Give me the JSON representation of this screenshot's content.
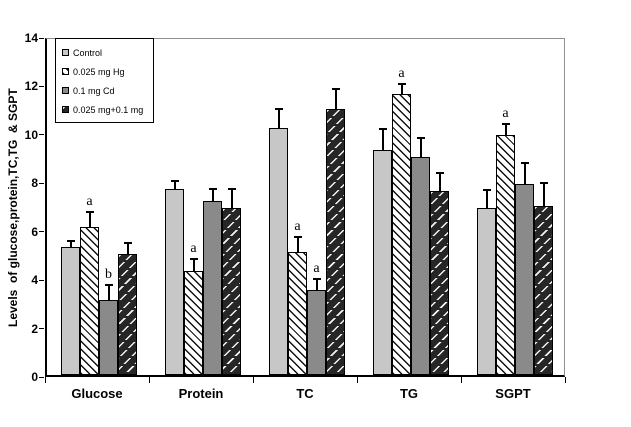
{
  "chart_data": {
    "type": "bar",
    "title": "",
    "xlabel": "",
    "ylabel": "Levels  of glucose,protein,TC,TG  & SGPT",
    "ylim": [
      0,
      14
    ],
    "ytick_step": 2,
    "yticks": [
      "0",
      "2",
      "4",
      "6",
      "8",
      "10",
      "12",
      "14"
    ],
    "grid": false,
    "legend_position": "top-left-inside",
    "error_bars": "plus-direction",
    "categories": [
      "Glucose",
      "Protein",
      "TC",
      "TG",
      "SGPT"
    ],
    "series": [
      {
        "name": "Control",
        "pattern": "solid-light-gray",
        "values": [
          5.3,
          7.7,
          10.2,
          9.3,
          6.9
        ],
        "errors": [
          0.25,
          0.3,
          0.8,
          0.85,
          0.75
        ],
        "annotations": [
          "",
          "",
          "",
          "",
          ""
        ]
      },
      {
        "name": "0.025 mg Hg",
        "pattern": "white-diagonal-hatch",
        "values": [
          6.1,
          4.3,
          5.1,
          11.6,
          9.9
        ],
        "errors": [
          0.65,
          0.5,
          0.6,
          0.4,
          0.45
        ],
        "annotations": [
          "a",
          "a",
          "a",
          "a",
          "a"
        ]
      },
      {
        "name": "0.1 mg Cd",
        "pattern": "solid-dark-gray",
        "values": [
          3.1,
          7.2,
          3.5,
          9.0,
          7.9
        ],
        "errors": [
          0.6,
          0.5,
          0.45,
          0.8,
          0.85
        ],
        "annotations": [
          "b",
          "",
          "a",
          "",
          ""
        ]
      },
      {
        "name": "0.025 mg+0.1 mg",
        "pattern": "dark-diagonal-dash",
        "values": [
          5.0,
          6.9,
          11.0,
          7.6,
          7.0
        ],
        "errors": [
          0.45,
          0.8,
          0.8,
          0.75,
          0.95
        ],
        "annotations": [
          "",
          "",
          "",
          "",
          ""
        ]
      }
    ],
    "colors": {
      "bar_light_gray": "#c7c7c7",
      "bar_dark_gray": "#8a8a8a",
      "bar_dark_fill": "#262626",
      "axis": "#000000",
      "plot_border": "#909090",
      "background": "#ffffff"
    }
  }
}
